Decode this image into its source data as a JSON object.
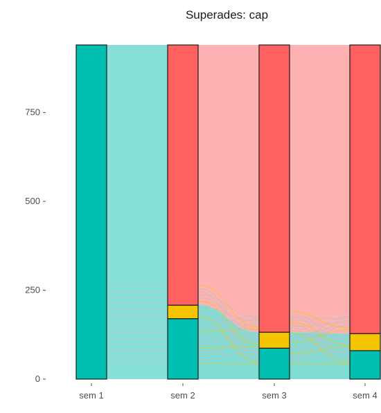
{
  "chart_data": {
    "type": "alluvial",
    "title": "Superades: cap",
    "xlabel": "",
    "ylabel": "",
    "ylim": [
      0,
      950
    ],
    "yticks": [
      0,
      250,
      500,
      750
    ],
    "grid": false,
    "legend": "none",
    "categories": [
      "sem 1",
      "sem 2",
      "sem 3",
      "sem 4"
    ],
    "total": 940,
    "strata_order": [
      "teal",
      "yellow",
      "red"
    ],
    "colors": {
      "teal": "#00BFB0",
      "yellow": "#F5C400",
      "red": "#FF6060",
      "flow_teal": "#80DDD6",
      "flow_red": "#FFB2B2",
      "stroke": "#1a1a1a"
    },
    "stacks": [
      {
        "axis": "sem 1",
        "teal": 940,
        "yellow": 0,
        "red": 0
      },
      {
        "axis": "sem 2",
        "teal": 170,
        "yellow": 38,
        "red": 732
      },
      {
        "axis": "sem 3",
        "teal": 87,
        "yellow": 45,
        "red": 808
      },
      {
        "axis": "sem 4",
        "teal": 80,
        "yellow": 48,
        "red": 812
      }
    ]
  }
}
